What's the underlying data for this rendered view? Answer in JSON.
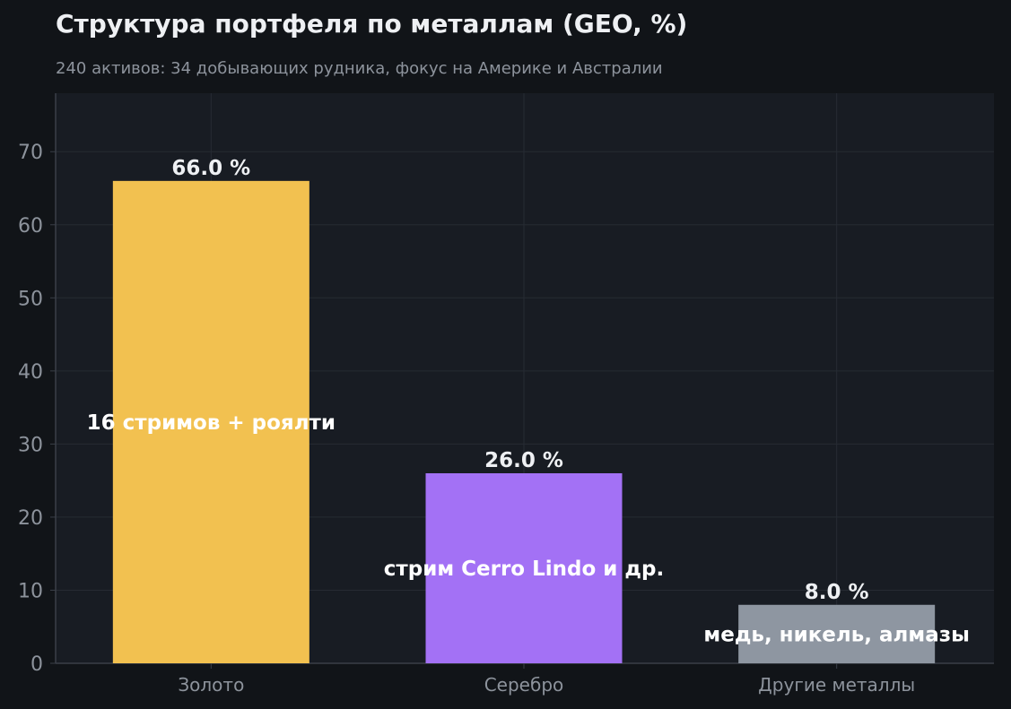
{
  "header": {
    "title": "Структура портфеля по металлам (GEO, %)",
    "subtitle": "240 активов: 34 добывающих рудника, фокус на Америке и Австралии"
  },
  "colors": {
    "page_bg": "#111418",
    "plot_bg": "#181c23",
    "grid": "#262b33",
    "tick_text": "#8d939c",
    "value_text": "#eef0f3",
    "inner_text": "#ffffff"
  },
  "chart_data": {
    "type": "bar",
    "categories": [
      "Золото",
      "Серебро",
      "Другие металлы"
    ],
    "values": [
      66.0,
      26.0,
      8.0
    ],
    "value_labels": [
      "66.0 %",
      "26.0 %",
      "8.0 %"
    ],
    "inner_labels": [
      "16 стримов + роялти",
      "стрим Cerro Lindo и др.",
      "медь, никель, алмазы"
    ],
    "bar_colors": [
      "#f2c150",
      "#a371f5",
      "#8e96a1"
    ],
    "title": "Структура портфеля по металлам (GEO, %)",
    "xlabel": "",
    "ylabel": "",
    "ylim": [
      0,
      78
    ],
    "yticks": [
      0,
      10,
      20,
      30,
      40,
      50,
      60,
      70
    ],
    "grid": true
  }
}
